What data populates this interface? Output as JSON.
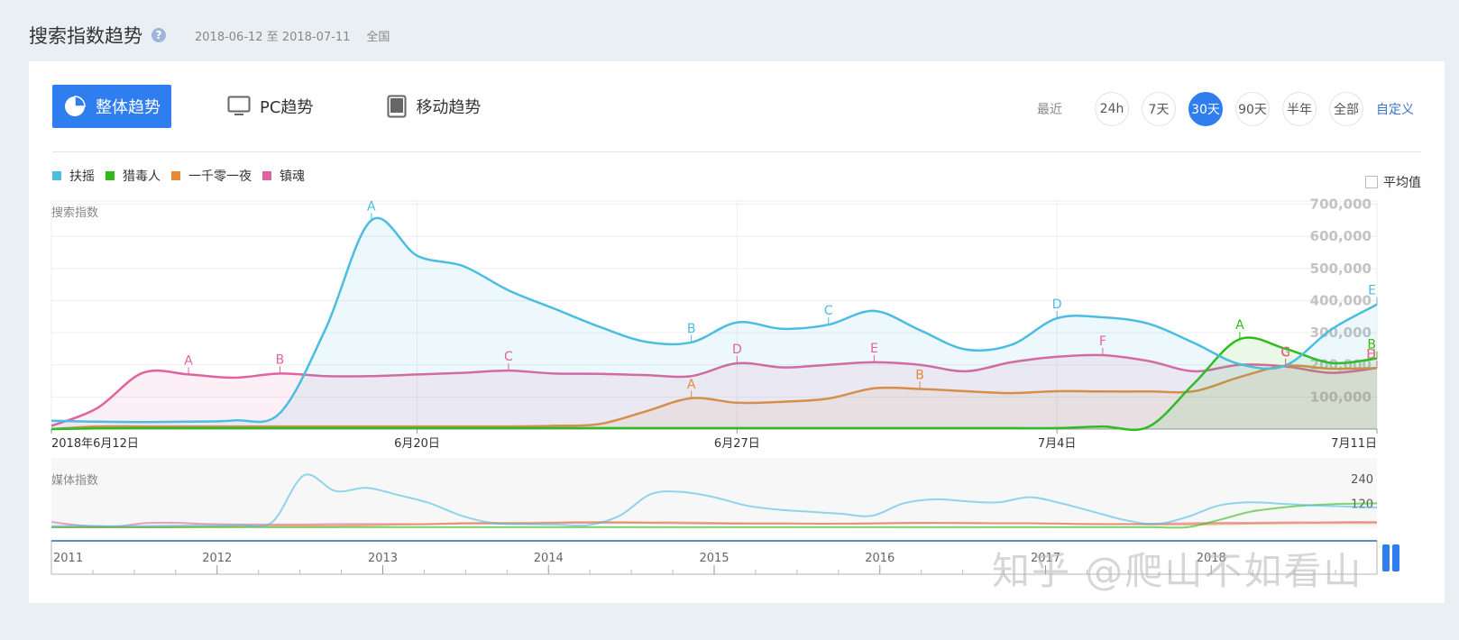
{
  "header": {
    "title": "搜索指数趋势",
    "help_icon": "question-icon",
    "date_range": "2018-06-12 至 2018-07-11",
    "region": "全国"
  },
  "tabs": [
    {
      "label": "整体趋势",
      "icon": "pie-chart-icon",
      "active": true
    },
    {
      "label": "PC趋势",
      "icon": "monitor-icon",
      "active": false
    },
    {
      "label": "移动趋势",
      "icon": "tablet-icon",
      "active": false
    }
  ],
  "range": {
    "label": "最近",
    "options": [
      "24h",
      "7天",
      "30天",
      "90天",
      "半年",
      "全部"
    ],
    "selected": "30天",
    "custom_label": "自定义"
  },
  "avg_toggle": {
    "label": "平均值",
    "checked": false
  },
  "colors": {
    "fuyao": "#4bbde0",
    "liedu": "#2ebc16",
    "yiqian": "#e6893b",
    "zhenhun": "#e0629e",
    "accent": "#2f7ef0"
  },
  "watermark_text": "知乎 @爬山不如看山",
  "chart_data": [
    {
      "type": "area",
      "ylabel": "搜索指数",
      "ylim": [
        0,
        700000
      ],
      "yticks": [
        100000,
        200000,
        300000,
        400000,
        500000,
        600000,
        700000
      ],
      "ytick_labels": [
        "100,000",
        "200,000",
        "300,000",
        "400,000",
        "500,000",
        "600,000",
        "700,000"
      ],
      "x": [
        "6/12",
        "6/13",
        "6/14",
        "6/15",
        "6/16",
        "6/17",
        "6/18",
        "6/19",
        "6/20",
        "6/21",
        "6/22",
        "6/23",
        "6/24",
        "6/25",
        "6/26",
        "6/27",
        "6/28",
        "6/29",
        "6/30",
        "7/1",
        "7/2",
        "7/3",
        "7/4",
        "7/5",
        "7/6",
        "7/7",
        "7/8",
        "7/9",
        "7/10",
        "7/11"
      ],
      "xtick_labels": [
        {
          "index": 0,
          "label": "2018年6月12日"
        },
        {
          "index": 8,
          "label": "6月20日"
        },
        {
          "index": 15,
          "label": "6月27日"
        },
        {
          "index": 22,
          "label": "7月4日"
        },
        {
          "index": 29,
          "label": "7月11日"
        }
      ],
      "series": [
        {
          "name": "扶摇",
          "color": "#4bbde0",
          "values": [
            26000,
            23000,
            22000,
            23000,
            27000,
            50000,
            312000,
            650000,
            540000,
            508000,
            432000,
            375000,
            318000,
            272000,
            270000,
            332000,
            312000,
            325000,
            368000,
            308000,
            248000,
            262000,
            345000,
            348000,
            328000,
            268000,
            202000,
            198000,
            310000,
            388000
          ],
          "markers": [
            {
              "index": 7,
              "label": "A"
            },
            {
              "index": 14,
              "label": "B"
            },
            {
              "index": 17,
              "label": "C"
            },
            {
              "index": 22,
              "label": "D"
            },
            {
              "index": 29,
              "label": "E"
            }
          ]
        },
        {
          "name": "猎毒人",
          "color": "#2ebc16",
          "values": [
            0,
            2000,
            3000,
            3000,
            3000,
            3000,
            3000,
            3000,
            3000,
            3000,
            3000,
            3000,
            3000,
            3000,
            3000,
            3000,
            3000,
            3000,
            3000,
            3000,
            3000,
            3000,
            3000,
            8000,
            7000,
            142000,
            280000,
            250000,
            206000,
            220000
          ],
          "markers": [
            {
              "index": 26,
              "label": "A"
            },
            {
              "index": 29,
              "label": "B"
            }
          ]
        },
        {
          "name": "一千零一夜",
          "color": "#e6893b",
          "values": [
            0,
            8000,
            8000,
            8000,
            8000,
            8000,
            8000,
            8000,
            8000,
            8000,
            8000,
            10000,
            16000,
            55000,
            96000,
            82000,
            85000,
            95000,
            127000,
            125000,
            118000,
            112000,
            118000,
            117000,
            117000,
            118000,
            162000,
            197000,
            188000,
            190000
          ],
          "markers": [
            {
              "index": 14,
              "label": "A"
            },
            {
              "index": 19,
              "label": "B"
            },
            {
              "index": 27,
              "label": "C"
            },
            {
              "index": 29,
              "label": "D"
            }
          ]
        },
        {
          "name": "镇魂",
          "color": "#e0629e",
          "values": [
            10000,
            65000,
            175000,
            170000,
            160000,
            173000,
            165000,
            165000,
            170000,
            175000,
            182000,
            173000,
            172000,
            168000,
            165000,
            205000,
            192000,
            200000,
            208000,
            200000,
            180000,
            208000,
            225000,
            230000,
            212000,
            180000,
            200000,
            195000,
            175000,
            190000
          ],
          "markers": [
            {
              "index": 3,
              "label": "A"
            },
            {
              "index": 5,
              "label": "B"
            },
            {
              "index": 10,
              "label": "C"
            },
            {
              "index": 15,
              "label": "D"
            },
            {
              "index": 18,
              "label": "E"
            },
            {
              "index": 23,
              "label": "F"
            },
            {
              "index": 27,
              "label": "G"
            },
            {
              "index": 29,
              "label": "H"
            }
          ]
        }
      ]
    },
    {
      "type": "line",
      "ylabel": "媒体指数",
      "ylim": [
        0,
        270
      ],
      "ytick_labels": [
        "240",
        "120"
      ],
      "yticks": [
        240,
        120
      ],
      "series": [
        {
          "name": "扶摇",
          "values": [
            10,
            12,
            10,
            11,
            13,
            15,
            16,
            30,
            255,
            180,
            195,
            160,
            120,
            60,
            25,
            20,
            18,
            15,
            60,
            165,
            175,
            150,
            110,
            90,
            80,
            70,
            60,
            120,
            140,
            130,
            125,
            150,
            120,
            80,
            40,
            20,
            55,
            110,
            125,
            118,
            110,
            105,
            100
          ]
        },
        {
          "name": "猎毒人",
          "values": [
            5,
            5,
            5,
            5,
            5,
            5,
            5,
            5,
            5,
            5,
            5,
            5,
            5,
            5,
            5,
            5,
            5,
            5,
            5,
            5,
            5,
            5,
            5,
            5,
            5,
            5,
            5,
            5,
            5,
            5,
            5,
            5,
            5,
            5,
            5,
            5,
            5,
            40,
            80,
            100,
            112,
            118,
            120
          ]
        },
        {
          "name": "一千零一夜",
          "values": [
            5,
            5,
            5,
            5,
            6,
            8,
            10,
            12,
            12,
            12,
            14,
            18,
            20,
            25,
            26,
            26,
            28,
            30,
            30,
            28,
            28,
            26,
            24,
            24,
            22,
            22,
            22,
            24,
            25,
            26,
            24,
            24,
            22,
            20,
            20,
            18,
            18,
            20,
            22,
            24,
            25,
            25,
            25
          ]
        },
        {
          "name": "镇魂",
          "values": [
            30,
            12,
            8,
            25,
            26,
            20,
            18,
            18,
            18,
            20,
            20,
            20,
            20,
            22,
            22,
            22,
            26,
            26,
            26,
            26,
            24,
            22,
            22,
            22,
            22,
            22,
            24,
            26,
            26,
            24,
            24,
            24,
            22,
            20,
            20,
            22,
            24,
            26,
            26,
            28,
            28,
            30,
            30
          ]
        }
      ]
    },
    {
      "type": "line",
      "role": "range-navigator",
      "xtick_labels": [
        "2011",
        "2012",
        "2013",
        "2014",
        "2015",
        "2016",
        "2017",
        "2018"
      ]
    }
  ]
}
